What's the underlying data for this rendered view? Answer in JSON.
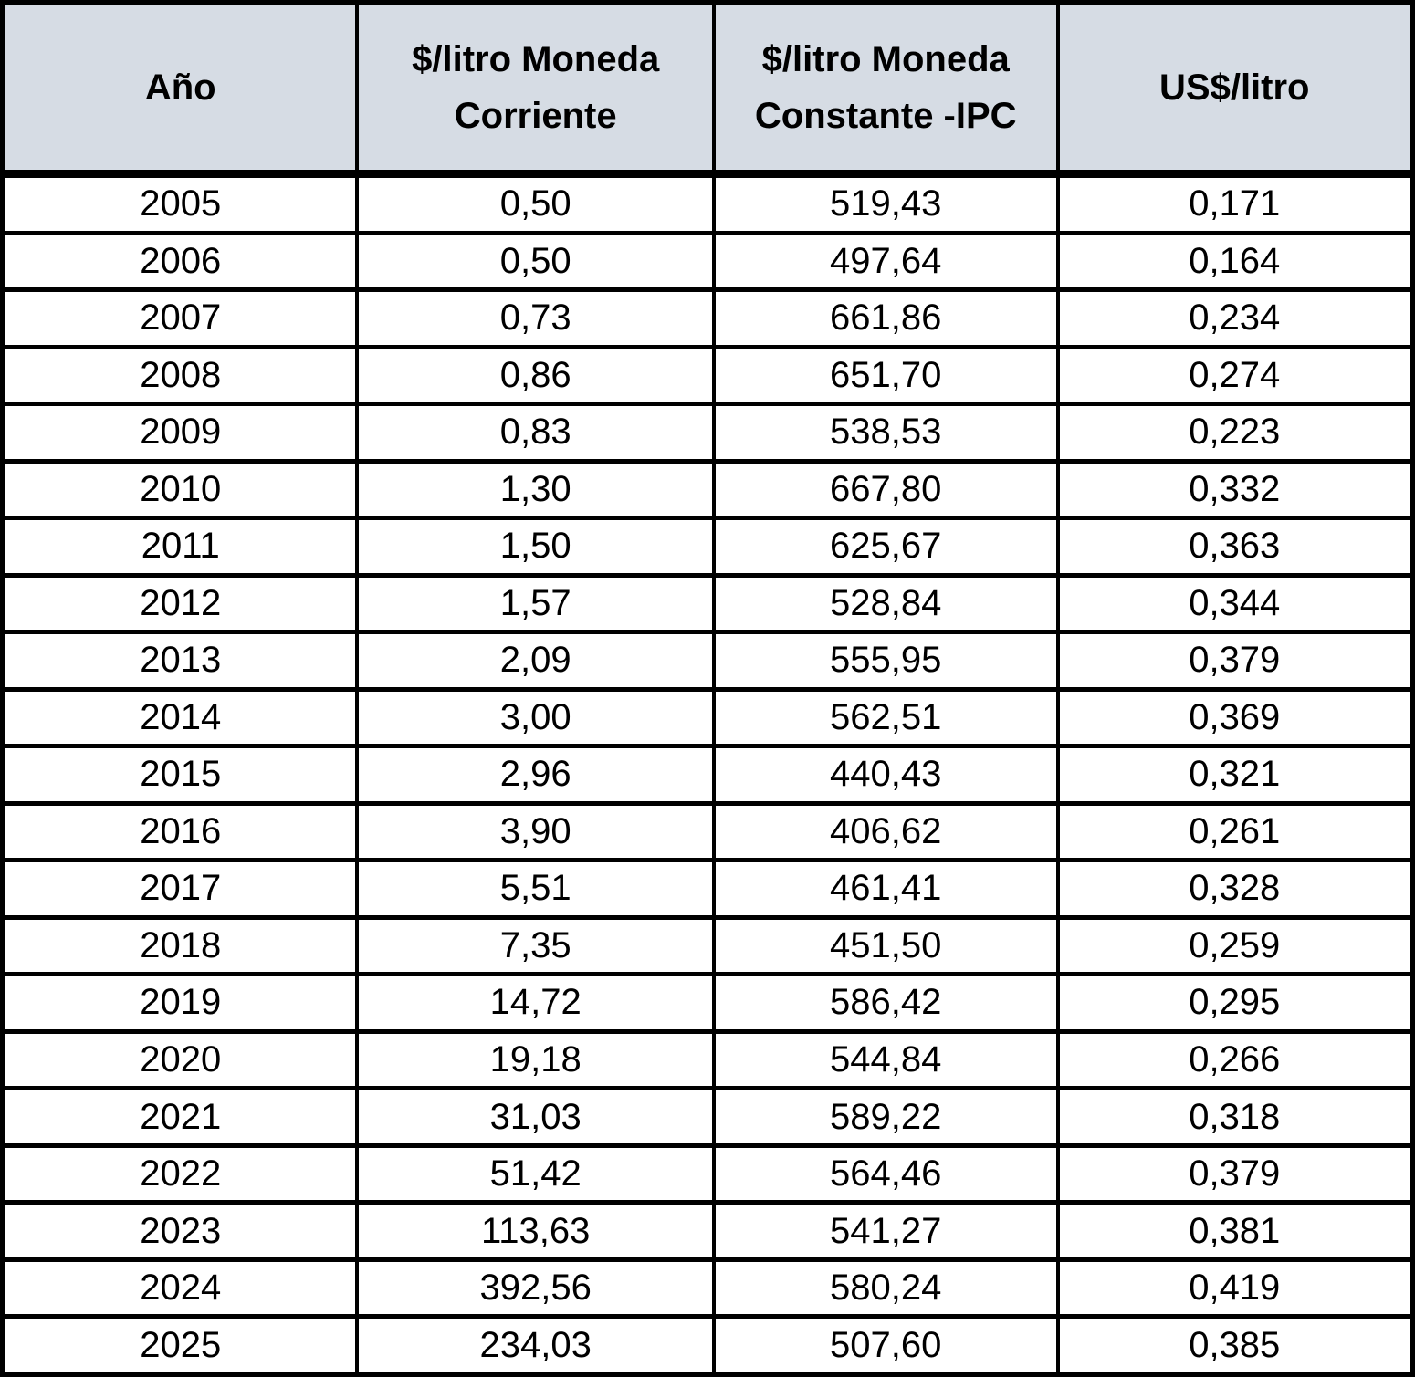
{
  "colors": {
    "header_bg": "#d6dce4",
    "border": "#000000",
    "row_bg": "#ffffff",
    "text": "#000000"
  },
  "chart_data": {
    "type": "table",
    "title": "",
    "columns": [
      "Año",
      "$/litro Moneda Corriente",
      "$/litro Moneda Constante -IPC",
      "US$/litro"
    ],
    "rows": [
      [
        "2005",
        "0,50",
        "519,43",
        "0,171"
      ],
      [
        "2006",
        "0,50",
        "497,64",
        "0,164"
      ],
      [
        "2007",
        "0,73",
        "661,86",
        "0,234"
      ],
      [
        "2008",
        "0,86",
        "651,70",
        "0,274"
      ],
      [
        "2009",
        "0,83",
        "538,53",
        "0,223"
      ],
      [
        "2010",
        "1,30",
        "667,80",
        "0,332"
      ],
      [
        "2011",
        "1,50",
        "625,67",
        "0,363"
      ],
      [
        "2012",
        "1,57",
        "528,84",
        "0,344"
      ],
      [
        "2013",
        "2,09",
        "555,95",
        "0,379"
      ],
      [
        "2014",
        "3,00",
        "562,51",
        "0,369"
      ],
      [
        "2015",
        "2,96",
        "440,43",
        "0,321"
      ],
      [
        "2016",
        "3,90",
        "406,62",
        "0,261"
      ],
      [
        "2017",
        "5,51",
        "461,41",
        "0,328"
      ],
      [
        "2018",
        "7,35",
        "451,50",
        "0,259"
      ],
      [
        "2019",
        "14,72",
        "586,42",
        "0,295"
      ],
      [
        "2020",
        "19,18",
        "544,84",
        "0,266"
      ],
      [
        "2021",
        "31,03",
        "589,22",
        "0,318"
      ],
      [
        "2022",
        "51,42",
        "564,46",
        "0,379"
      ],
      [
        "2023",
        "113,63",
        "541,27",
        "0,381"
      ],
      [
        "2024",
        "392,56",
        "580,24",
        "0,419"
      ],
      [
        "2025",
        "234,03",
        "507,60",
        "0,385"
      ]
    ],
    "series": [
      {
        "name": "$/litro Moneda Corriente",
        "x": [
          2005,
          2006,
          2007,
          2008,
          2009,
          2010,
          2011,
          2012,
          2013,
          2014,
          2015,
          2016,
          2017,
          2018,
          2019,
          2020,
          2021,
          2022,
          2023,
          2024,
          2025
        ],
        "values": [
          0.5,
          0.5,
          0.73,
          0.86,
          0.83,
          1.3,
          1.5,
          1.57,
          2.09,
          3.0,
          2.96,
          3.9,
          5.51,
          7.35,
          14.72,
          19.18,
          31.03,
          51.42,
          113.63,
          392.56,
          234.03
        ]
      },
      {
        "name": "$/litro Moneda Constante -IPC",
        "x": [
          2005,
          2006,
          2007,
          2008,
          2009,
          2010,
          2011,
          2012,
          2013,
          2014,
          2015,
          2016,
          2017,
          2018,
          2019,
          2020,
          2021,
          2022,
          2023,
          2024,
          2025
        ],
        "values": [
          519.43,
          497.64,
          661.86,
          651.7,
          538.53,
          667.8,
          625.67,
          528.84,
          555.95,
          562.51,
          440.43,
          406.62,
          461.41,
          451.5,
          586.42,
          544.84,
          589.22,
          564.46,
          541.27,
          580.24,
          507.6
        ]
      },
      {
        "name": "US$/litro",
        "x": [
          2005,
          2006,
          2007,
          2008,
          2009,
          2010,
          2011,
          2012,
          2013,
          2014,
          2015,
          2016,
          2017,
          2018,
          2019,
          2020,
          2021,
          2022,
          2023,
          2024,
          2025
        ],
        "values": [
          0.171,
          0.164,
          0.234,
          0.274,
          0.223,
          0.332,
          0.363,
          0.344,
          0.379,
          0.369,
          0.321,
          0.261,
          0.328,
          0.259,
          0.295,
          0.266,
          0.318,
          0.379,
          0.381,
          0.419,
          0.385
        ]
      }
    ],
    "layout": {
      "decimal_separator": ",",
      "header_style": "bold, blue-gray fill",
      "grid": "thick black borders, heavier rule below header"
    }
  }
}
